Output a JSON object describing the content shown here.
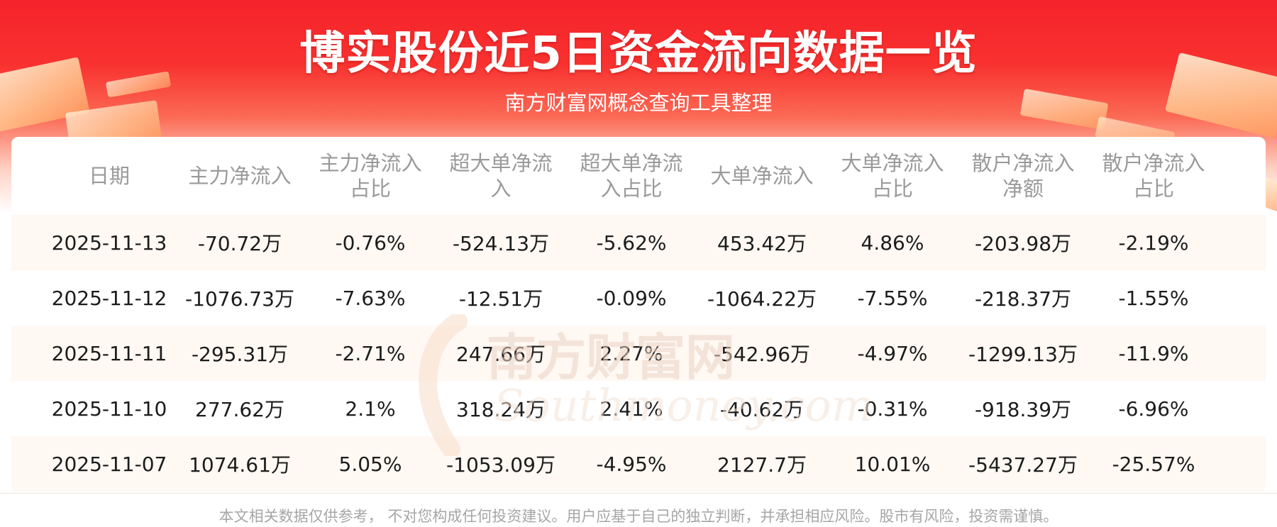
{
  "header": {
    "title": "博实股份近5日资金流向数据一览",
    "subtitle": "南方财富网概念查询工具整理"
  },
  "watermark": {
    "cn": "南方财富网",
    "en": "Southmoney.com"
  },
  "table": {
    "columns": [
      "日期",
      "主力净流入",
      "主力净流入占比",
      "超大单净流入",
      "超大单净流入占比",
      "大单净流入",
      "大单净流入占比",
      "散户净流入净额",
      "散户净流入占比"
    ],
    "rows": [
      [
        "2025-11-13",
        "-70.72万",
        "-0.76%",
        "-524.13万",
        "-5.62%",
        "453.42万",
        "4.86%",
        "-203.98万",
        "-2.19%"
      ],
      [
        "2025-11-12",
        "-1076.73万",
        "-7.63%",
        "-12.51万",
        "-0.09%",
        "-1064.22万",
        "-7.55%",
        "-218.37万",
        "-1.55%"
      ],
      [
        "2025-11-11",
        "-295.31万",
        "-2.71%",
        "247.66万",
        "2.27%",
        "-542.96万",
        "-4.97%",
        "-1299.13万",
        "-11.9%"
      ],
      [
        "2025-11-10",
        "277.62万",
        "2.1%",
        "318.24万",
        "2.41%",
        "-40.62万",
        "-0.31%",
        "-918.39万",
        "-6.96%"
      ],
      [
        "2025-11-07",
        "1074.61万",
        "5.05%",
        "-1053.09万",
        "-4.95%",
        "2127.7万",
        "10.01%",
        "-5437.27万",
        "-25.57%"
      ]
    ]
  },
  "footer": {
    "disclaimer": "本文相关数据仅供参考， 不对您构成任何投资建议。用户应基于自己的独立判断，并承担相应风险。股市有风险，投资需谨慎。"
  },
  "colors": {
    "banner_red": "#f5232b",
    "row_shade": "#fff8f3",
    "header_text": "#9a9a9a",
    "cell_text": "#1c1c1c"
  }
}
